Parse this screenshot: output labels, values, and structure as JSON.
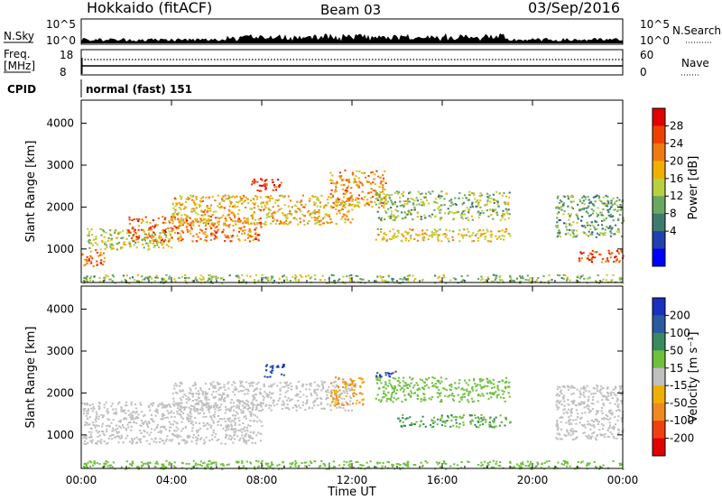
{
  "header": {
    "title": "Hokkaido (fitACF)",
    "beam": "Beam 03",
    "date": "03/Sep/2016"
  },
  "aux": {
    "nsky_label": "N.Sky",
    "nsky_ticks": [
      "10^5",
      "10^0"
    ],
    "nsearch_label": "N.Search",
    "nsearch_ticks": [
      "10^5",
      "10^0"
    ],
    "freq_label_1": "Freq.",
    "freq_label_2": "[MHz]",
    "freq_ticks": [
      "18",
      "8"
    ],
    "nave_label": "Nave",
    "nave_ticks": [
      "60",
      "0"
    ],
    "cpid_label": "CPID",
    "cpid_text": "normal (fast) 151"
  },
  "axes": {
    "ylabel": "Slant Range [km]",
    "xlabel": "Time UT",
    "yticks": [
      1000,
      2000,
      3000,
      4000
    ],
    "ylim": [
      200,
      4550
    ],
    "xticks": [
      "00:00",
      "04:00",
      "08:00",
      "12:00",
      "16:00",
      "20:00",
      "00:00"
    ],
    "xlim_hours": [
      0,
      24
    ]
  },
  "colorbars": {
    "power": {
      "label": "Power [dB]",
      "ticks": [
        "28",
        "24",
        "20",
        "16",
        "12",
        "8",
        "4"
      ],
      "colors": [
        "#e00000",
        "#f04000",
        "#f07a10",
        "#f0b000",
        "#b8d040",
        "#6aa860",
        "#3f7a70",
        "#2040b0",
        "#0000ff"
      ]
    },
    "velocity": {
      "label": "Velocity [m s⁻¹]",
      "ticks": [
        "200",
        "100",
        "50",
        "15",
        "-15",
        "-50",
        "-100",
        "-200"
      ],
      "colors": [
        "#1a30c0",
        "#2a5aa0",
        "#3a8a60",
        "#70c040",
        "#c0c0c0",
        "#f0b000",
        "#f08a20",
        "#f04010",
        "#e00000"
      ]
    }
  },
  "chart_data": [
    {
      "type": "heatmap",
      "panel": "power",
      "xlabel": "Time UT",
      "ylabel": "Slant Range [km]",
      "colorbar_label": "Power [dB]",
      "echo_bands": [
        {
          "t_start": 0.0,
          "t_end": 1.0,
          "r_start": 600,
          "r_end": 1000,
          "power_db": 24
        },
        {
          "t_start": 0.2,
          "t_end": 4.0,
          "r_start": 1000,
          "r_end": 1500,
          "power_db": 16
        },
        {
          "t_start": 2.0,
          "t_end": 8.0,
          "r_start": 1200,
          "r_end": 1800,
          "power_db": 24
        },
        {
          "t_start": 4.0,
          "t_end": 12.0,
          "r_start": 1600,
          "r_end": 2300,
          "power_db": 20
        },
        {
          "t_start": 7.5,
          "t_end": 9.0,
          "r_start": 2400,
          "r_end": 2700,
          "power_db": 26
        },
        {
          "t_start": 11.0,
          "t_end": 13.5,
          "r_start": 2000,
          "r_end": 2900,
          "power_db": 22
        },
        {
          "t_start": 13.0,
          "t_end": 19.0,
          "r_start": 1700,
          "r_end": 2400,
          "power_db": 14
        },
        {
          "t_start": 13.0,
          "t_end": 19.0,
          "r_start": 1200,
          "r_end": 1500,
          "power_db": 18
        },
        {
          "t_start": 21.0,
          "t_end": 24.0,
          "r_start": 1300,
          "r_end": 2300,
          "power_db": 12
        },
        {
          "t_start": 22.0,
          "t_end": 24.0,
          "r_start": 700,
          "r_end": 1000,
          "power_db": 26
        },
        {
          "t_start": 0.0,
          "t_end": 24.0,
          "r_start": 200,
          "r_end": 400,
          "power_db": 14
        }
      ]
    },
    {
      "type": "heatmap",
      "panel": "velocity",
      "xlabel": "Time UT",
      "ylabel": "Slant Range [km]",
      "colorbar_label": "Velocity [m s⁻¹]",
      "echo_bands": [
        {
          "t_start": 0.0,
          "t_end": 8.0,
          "r_start": 800,
          "r_end": 1800,
          "velocity": 0
        },
        {
          "t_start": 4.0,
          "t_end": 12.0,
          "r_start": 1600,
          "r_end": 2300,
          "velocity": 0
        },
        {
          "t_start": 8.0,
          "t_end": 9.0,
          "r_start": 2400,
          "r_end": 2700,
          "velocity": 200
        },
        {
          "t_start": 11.0,
          "t_end": 12.5,
          "r_start": 1700,
          "r_end": 2400,
          "velocity": -50
        },
        {
          "t_start": 13.0,
          "t_end": 19.0,
          "r_start": 1800,
          "r_end": 2400,
          "velocity": 30
        },
        {
          "t_start": 14.0,
          "t_end": 19.0,
          "r_start": 1200,
          "r_end": 1500,
          "velocity": 50
        },
        {
          "t_start": 13.0,
          "t_end": 14.0,
          "r_start": 2400,
          "r_end": 2550,
          "velocity": 200
        },
        {
          "t_start": 21.0,
          "t_end": 24.0,
          "r_start": 900,
          "r_end": 2200,
          "velocity": 0
        },
        {
          "t_start": 0.0,
          "t_end": 24.0,
          "r_start": 200,
          "r_end": 400,
          "velocity": 30
        }
      ]
    }
  ]
}
